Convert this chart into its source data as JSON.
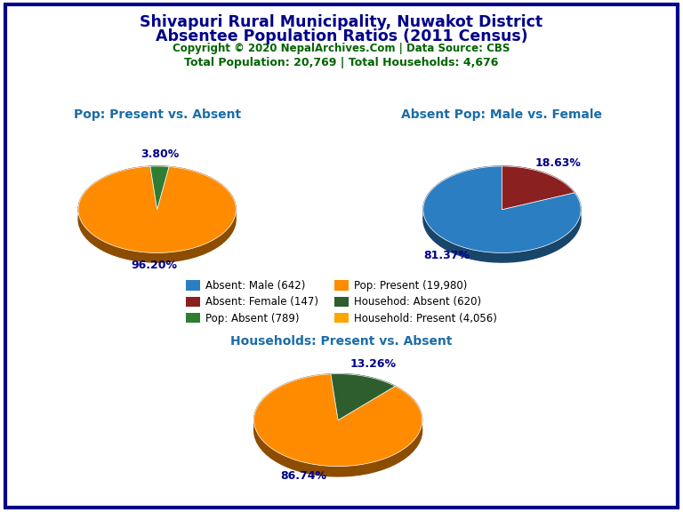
{
  "title_line1": "Shivapuri Rural Municipality, Nuwakot District",
  "title_line2": "Absentee Population Ratios (2011 Census)",
  "copyright": "Copyright © 2020 NepalArchives.Com | Data Source: CBS",
  "stats": "Total Population: 20,769 | Total Households: 4,676",
  "pie1_title": "Pop: Present vs. Absent",
  "pie1_values": [
    96.2,
    3.8
  ],
  "pie1_colors": [
    "#FF8C00",
    "#2E7D32"
  ],
  "pie1_labels": [
    "96.20%",
    "3.80%"
  ],
  "pie2_title": "Absent Pop: Male vs. Female",
  "pie2_values": [
    81.37,
    18.63
  ],
  "pie2_colors": [
    "#2B7EC1",
    "#8B2020"
  ],
  "pie2_labels": [
    "81.37%",
    "18.63%"
  ],
  "pie3_title": "Households: Present vs. Absent",
  "pie3_values": [
    86.74,
    13.26
  ],
  "pie3_colors": [
    "#FF8C00",
    "#2E5E2E"
  ],
  "pie3_labels": [
    "86.74%",
    "13.26%"
  ],
  "legend_items": [
    {
      "label": "Absent: Male (642)",
      "color": "#2B7EC1"
    },
    {
      "label": "Absent: Female (147)",
      "color": "#8B2020"
    },
    {
      "label": "Pop: Absent (789)",
      "color": "#2E7D32"
    },
    {
      "label": "Pop: Present (19,980)",
      "color": "#FF8C00"
    },
    {
      "label": "Househod: Absent (620)",
      "color": "#2E5E2E"
    },
    {
      "label": "Household: Present (4,056)",
      "color": "#FFA500"
    }
  ],
  "title_color": "#00008B",
  "copyright_color": "#006400",
  "stats_color": "#006400",
  "subtitle_color": "#1B6CA8",
  "pct_color": "#00008B",
  "bg_color": "#FFFFFF",
  "border_color": "#00008B"
}
